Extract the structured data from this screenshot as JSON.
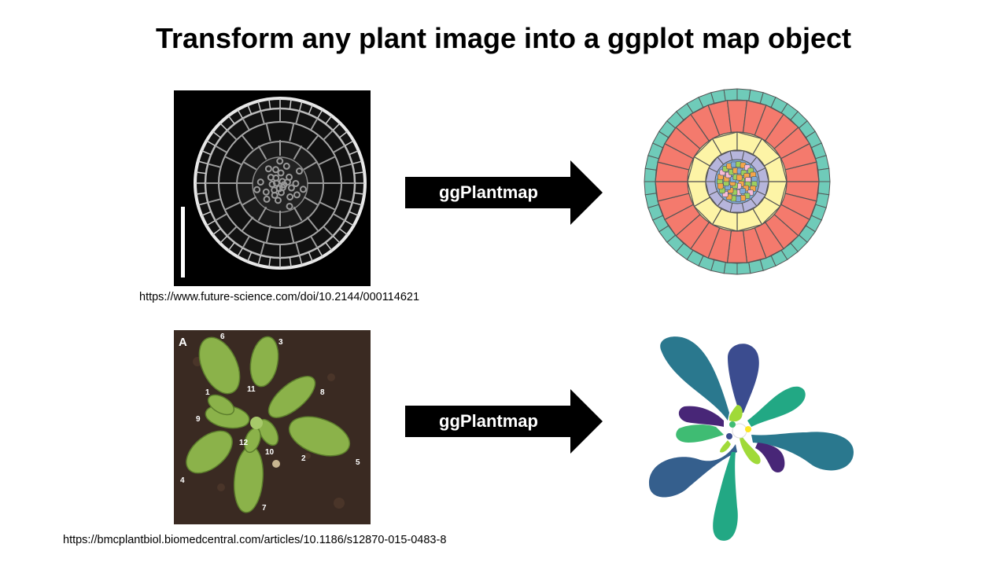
{
  "slide": {
    "title": "Transform any plant image into a ggplot map object"
  },
  "root_row": {
    "photo_description_icon": "root-cross-section-micrograph",
    "source_url": "https://www.future-science.com/doi/10.2144/000114621",
    "arrow_label": "ggPlantmap",
    "map_icon": "root-cross-section-ggplot-map",
    "colors": {
      "epidermis": "#6fcbb9",
      "cortex": "#f47a6d",
      "endodermis": "#fdf4a6",
      "pericycle": "#b6b5dc",
      "vascular_blue": "#7fa9d6",
      "vascular_green": "#9ccf5e",
      "vascular_orange": "#f4a64a",
      "vascular_pink": "#f7bcd9"
    }
  },
  "rosette_row": {
    "photo_description_icon": "arabidopsis-rosette-photo",
    "panel_letter": "A",
    "leaf_numbers": [
      "1",
      "2",
      "3",
      "4",
      "5",
      "6",
      "7",
      "8",
      "9",
      "10",
      "11",
      "12"
    ],
    "source_url": "https://bmcplantbiol.biomedcentral.com/articles/10.1186/s12870-015-0483-8",
    "arrow_label": "ggPlantmap",
    "map_icon": "rosette-ggplot-map",
    "colors": {
      "teal": "#2a788e",
      "blue": "#355f8d",
      "indigo": "#3b4c8f",
      "green": "#22a884",
      "mid_green": "#3fbc73",
      "purple": "#482677",
      "lime": "#a0da39",
      "yellow": "#fde725"
    }
  }
}
